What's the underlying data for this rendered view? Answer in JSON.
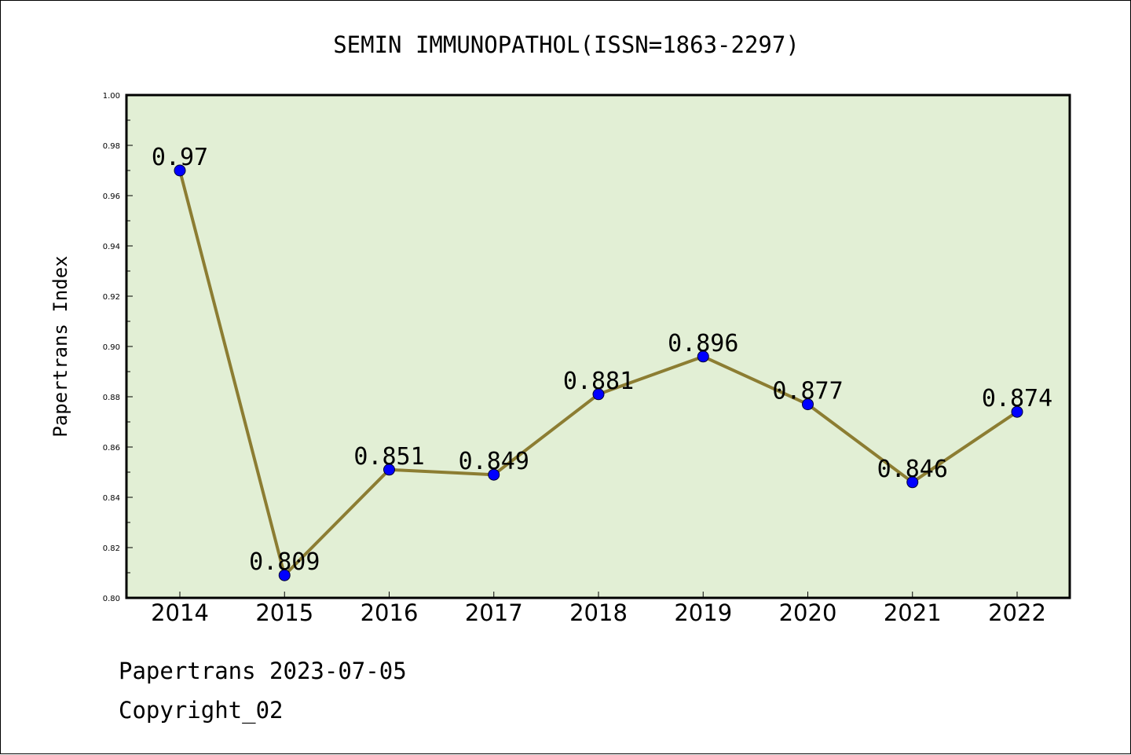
{
  "chart_data": {
    "type": "line",
    "title": "SEMIN IMMUNOPATHOL(ISSN=1863-2297)",
    "xlabel": "",
    "ylabel": "Papertrans Index",
    "categories": [
      "2014",
      "2015",
      "2016",
      "2017",
      "2018",
      "2019",
      "2020",
      "2021",
      "2022"
    ],
    "series": [
      {
        "values": [
          0.97,
          0.809,
          0.851,
          0.849,
          0.881,
          0.896,
          0.877,
          0.846,
          0.874
        ]
      }
    ],
    "data_labels": [
      "0.97",
      "0.809",
      "0.851",
      "0.849",
      "0.881",
      "0.896",
      "0.877",
      "0.846",
      "0.874"
    ],
    "ylim": [
      0.8,
      1.0
    ],
    "yticks": [
      "0.80",
      "0.82",
      "0.84",
      "0.86",
      "0.88",
      "0.90",
      "0.92",
      "0.94",
      "0.96",
      "0.98",
      "1.00"
    ],
    "grid": false,
    "legend": "none",
    "colors": {
      "plot_background": "#e2efd5",
      "line": "#8c7d32",
      "marker": "#0000ff"
    }
  },
  "footer": {
    "date_line": "Papertrans 2023-07-05",
    "copyright": "Copyright_02"
  }
}
